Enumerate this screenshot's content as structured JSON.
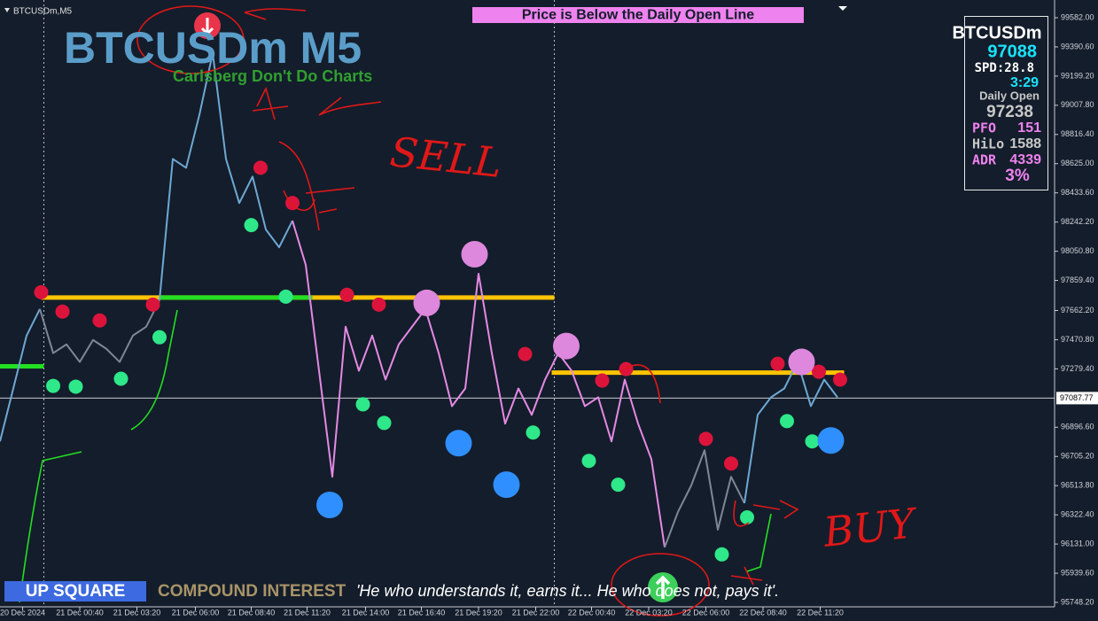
{
  "chart_data": {
    "type": "line",
    "symbol_label": "BTCUSDm,M5",
    "title": "BTCUSDm M5",
    "subtitle": "Carlsberg Don't Do Charts",
    "banner": "Price is Below the Daily Open Line",
    "ylim": [
      95748.2,
      99582.0
    ],
    "yticks": [
      {
        "value": 99582.0,
        "label": "99582.00"
      },
      {
        "value": 99390.6,
        "label": "99390.60"
      },
      {
        "value": 99199.2,
        "label": "99199.20"
      },
      {
        "value": 99007.8,
        "label": "99007.80"
      },
      {
        "value": 98816.4,
        "label": "98816.40"
      },
      {
        "value": 98625.0,
        "label": "98625.00"
      },
      {
        "value": 98433.6,
        "label": "98433.60"
      },
      {
        "value": 98242.2,
        "label": "98242.20"
      },
      {
        "value": 98050.8,
        "label": "98050.80"
      },
      {
        "value": 97859.4,
        "label": "97859.40"
      },
      {
        "value": 97662.2,
        "label": "97662.20"
      },
      {
        "value": 97470.8,
        "label": "97470.80"
      },
      {
        "value": 97279.4,
        "label": "97279.40"
      },
      {
        "value": 96896.6,
        "label": "96896.60"
      },
      {
        "value": 96705.2,
        "label": "96705.20"
      },
      {
        "value": 96513.8,
        "label": "96513.80"
      },
      {
        "value": 96322.4,
        "label": "96322.40"
      },
      {
        "value": 96131.0,
        "label": "96131.00"
      },
      {
        "value": 95939.6,
        "label": "95939.60"
      },
      {
        "value": 95748.2,
        "label": "95748.20"
      }
    ],
    "xlim": [
      0,
      79
    ],
    "xticks": [
      {
        "value": 1.7,
        "label": "20 Dec 2024"
      },
      {
        "value": 6.0,
        "label": "21 Dec 00:40"
      },
      {
        "value": 10.3,
        "label": "21 Dec 03:20"
      },
      {
        "value": 14.7,
        "label": "21 Dec 06:00"
      },
      {
        "value": 18.9,
        "label": "21 Dec 08:40"
      },
      {
        "value": 23.1,
        "label": "21 Dec 11:20"
      },
      {
        "value": 27.5,
        "label": "21 Dec 14:00"
      },
      {
        "value": 31.7,
        "label": "21 Dec 16:40"
      },
      {
        "value": 36.0,
        "label": "21 Dec 19:20"
      },
      {
        "value": 40.3,
        "label": "21 Dec 22:00"
      },
      {
        "value": 44.5,
        "label": "22 Dec 00:40"
      },
      {
        "value": 48.8,
        "label": "22 Dec 03:20"
      },
      {
        "value": 53.1,
        "label": "22 Dec 06:00"
      },
      {
        "value": 57.4,
        "label": "22 Dec 08:40"
      },
      {
        "value": 61.7,
        "label": "22 Dec 11:20"
      }
    ],
    "series": [
      {
        "values": [
          96804,
          97151,
          97498,
          97672,
          97383,
          97440,
          97325,
          97469,
          97411,
          97325,
          97498,
          97556,
          97730,
          98656,
          98598,
          98945,
          99350,
          98656,
          98367,
          98540,
          98193,
          98077,
          98251,
          97961,
          97267,
          96572,
          97556,
          97267,
          97498,
          97209,
          97440,
          97556,
          97672,
          97383,
          97035,
          97151,
          97903,
          97383,
          96920,
          97151,
          96978,
          97209,
          97383,
          97267,
          97035,
          97093,
          96804,
          97209,
          96920,
          96688,
          96109,
          96341,
          96515,
          96746,
          96225,
          96572,
          96399,
          96978,
          97093,
          97151,
          97325,
          97035,
          97209,
          97093
        ],
        "color_segments": [
          {
            "color": "#6ea8d4",
            "from": 0,
            "to": 3
          },
          {
            "color": "#7d8896",
            "from": 3,
            "to": 12
          },
          {
            "color": "#6ea8d4",
            "from": 12,
            "to": 22
          },
          {
            "color": "#e48ae4",
            "from": 22,
            "to": 50
          },
          {
            "color": "#7d8896",
            "from": 50,
            "to": 56
          },
          {
            "color": "#6ea8d4",
            "from": 56,
            "to": 63
          }
        ]
      }
    ],
    "levels": [
      {
        "color": "#ffc400",
        "value": 97747,
        "from": 3.1,
        "to": 41.7
      },
      {
        "color": "#ffc400",
        "value": 97255,
        "from": 41.5,
        "to": 63.5
      },
      {
        "color": "#22e022",
        "value": 97747,
        "from": 12,
        "to": 23.5
      },
      {
        "color": "#22e022",
        "value": 97296,
        "from": 0,
        "to": 3.3
      }
    ],
    "current_price": {
      "value": 97087.77,
      "label": "97087.77"
    },
    "day_separators": [
      3.3,
      41.7
    ],
    "signals": [
      {
        "color": "#dc143c",
        "large": false,
        "points": [
          [
            3.1,
            97782
          ],
          [
            4.7,
            97655
          ],
          [
            7.5,
            97597
          ],
          [
            11.5,
            97701
          ],
          [
            19.6,
            98598
          ],
          [
            22,
            98367
          ],
          [
            26.1,
            97765
          ],
          [
            28.5,
            97701
          ],
          [
            39.5,
            97377
          ],
          [
            45.3,
            97203
          ],
          [
            47.1,
            97278
          ],
          [
            53.1,
            96821
          ],
          [
            55,
            96659
          ],
          [
            58.5,
            97313
          ],
          [
            61.6,
            97261
          ],
          [
            63.2,
            97209
          ]
        ]
      },
      {
        "color": "#2ee88a",
        "large": false,
        "points": [
          [
            4,
            97168
          ],
          [
            5.7,
            97163
          ],
          [
            9.1,
            97215
          ],
          [
            12,
            97487
          ],
          [
            18.9,
            98222
          ],
          [
            21.5,
            97753
          ],
          [
            27.3,
            97047
          ],
          [
            28.9,
            96925
          ],
          [
            40.1,
            96862
          ],
          [
            44.3,
            96676
          ],
          [
            46.5,
            96520
          ],
          [
            54.3,
            96063
          ],
          [
            56.2,
            96306
          ],
          [
            59.2,
            96937
          ],
          [
            61.1,
            96804
          ]
        ]
      },
      {
        "color": "#2f8fff",
        "large": true,
        "points": [
          [
            24.8,
            96387
          ],
          [
            34.5,
            96792
          ],
          [
            38.1,
            96520
          ],
          [
            62.5,
            96810
          ]
        ]
      },
      {
        "color": "#dd88dd",
        "large": true,
        "points": [
          [
            35.7,
            98031
          ],
          [
            32.1,
            97712
          ],
          [
            42.6,
            97429
          ],
          [
            60.3,
            97325
          ]
        ]
      }
    ],
    "annotations": [
      "SELL",
      "BUY"
    ]
  },
  "panel": {
    "symbol": "BTCUSDm",
    "price": "97088",
    "spread": "SPD:28.8",
    "timer": "3:29",
    "daily_open_label": "Daily Open",
    "daily_open": "97238",
    "rows": [
      [
        "PFO",
        "151"
      ],
      [
        "HiLo",
        "1588"
      ],
      [
        "ADR",
        "4339"
      ]
    ],
    "percent": "3%"
  },
  "footer": {
    "badge": "UP SQUARE",
    "heading": "COMPOUND INTEREST",
    "quote": "'He who understands it, earns it... He who does not, pays it'."
  }
}
